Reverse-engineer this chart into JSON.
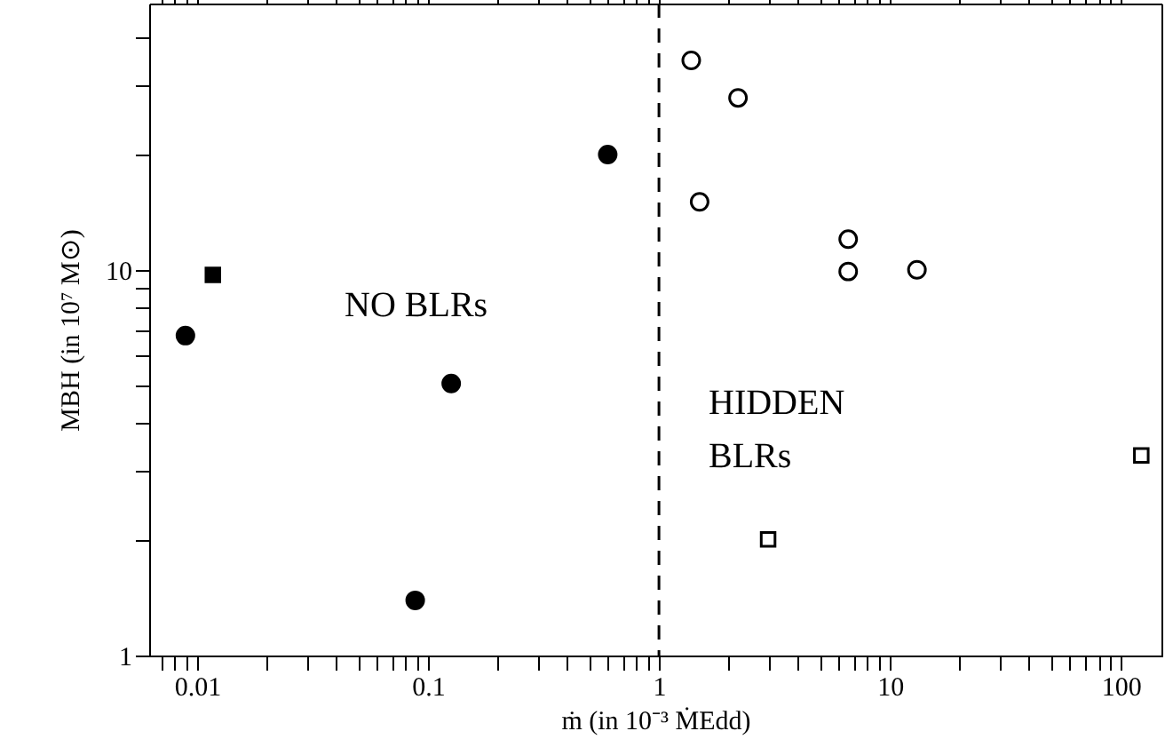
{
  "chart_data": {
    "type": "scatter",
    "xlabel": "ṁ (in 10⁻³ ṀEdd)",
    "ylabel": "MBH (in 10⁷ M⊙)",
    "log": "xy",
    "xlim": [
      0.0062,
      150
    ],
    "ylim": [
      1,
      49
    ],
    "xticks": [
      {
        "value": 0.007,
        "label": null
      },
      {
        "value": 0.008,
        "label": null
      },
      {
        "value": 0.009,
        "label": null
      },
      0.01,
      {
        "value": 0.02,
        "label": null
      },
      {
        "value": 0.03,
        "label": null
      },
      {
        "value": 0.04,
        "label": null
      },
      {
        "value": 0.05,
        "label": null
      },
      {
        "value": 0.06,
        "label": null
      },
      {
        "value": 0.07,
        "label": null
      },
      {
        "value": 0.08,
        "label": null
      },
      {
        "value": 0.09,
        "label": null
      },
      0.1,
      {
        "value": 0.2,
        "label": null
      },
      {
        "value": 0.3,
        "label": null
      },
      {
        "value": 0.4,
        "label": null
      },
      {
        "value": 0.5,
        "label": null
      },
      {
        "value": 0.6,
        "label": null
      },
      {
        "value": 0.7,
        "label": null
      },
      {
        "value": 0.8,
        "label": null
      },
      {
        "value": 0.9,
        "label": null
      },
      1,
      {
        "value": 2,
        "label": null
      },
      {
        "value": 3,
        "label": null
      },
      {
        "value": 4,
        "label": null
      },
      {
        "value": 5,
        "label": null
      },
      {
        "value": 6,
        "label": null
      },
      {
        "value": 7,
        "label": null
      },
      {
        "value": 8,
        "label": null
      },
      {
        "value": 9,
        "label": null
      },
      10,
      {
        "value": 20,
        "label": null
      },
      {
        "value": 30,
        "label": null
      },
      {
        "value": 40,
        "label": null
      },
      {
        "value": 50,
        "label": null
      },
      {
        "value": 60,
        "label": null
      },
      {
        "value": 70,
        "label": null
      },
      {
        "value": 80,
        "label": null
      },
      {
        "value": 90,
        "label": null
      },
      100
    ],
    "yticks": [
      1,
      {
        "value": 2,
        "label": null
      },
      {
        "value": 3,
        "label": null
      },
      {
        "value": 4,
        "label": null
      },
      {
        "value": 5,
        "label": null
      },
      {
        "value": 6,
        "label": null
      },
      {
        "value": 7,
        "label": null
      },
      {
        "value": 8,
        "label": null
      },
      {
        "value": 9,
        "label": null
      },
      10,
      {
        "value": 20,
        "label": null
      },
      {
        "value": 30,
        "label": null
      },
      {
        "value": 40,
        "label": null
      }
    ],
    "grid": false,
    "series": [
      {
        "color": "#000000",
        "marker": "circle",
        "x": [
          0.0089,
          0.088,
          0.126,
          0.6
        ],
        "values": [
          6.75,
          1.39,
          5.07,
          19.9
        ]
      },
      {
        "color": "#000000",
        "marker": "square",
        "x": [
          0.0117
        ],
        "values": [
          9.7
        ]
      },
      {
        "color": "#000000",
        "marker": "circle",
        "x": [
          1.38,
          2.2,
          1.5,
          6.6,
          6.6,
          13.1
        ],
        "values": [
          34.9,
          27.9,
          15,
          12,
          9.9,
          10
        ]
      },
      {
        "color": "#000000",
        "marker": "square",
        "x": [
          2.97,
          122.7
        ],
        "values": [
          2,
          3.3
        ]
      }
    ],
    "ref_lines": [
      {
        "axis": "x",
        "value": 1,
        "color": "#000000",
        "line_style": "dashed"
      }
    ],
    "annotations": [
      "NO BLRs",
      "HIDDEN\nBLRs"
    ]
  }
}
